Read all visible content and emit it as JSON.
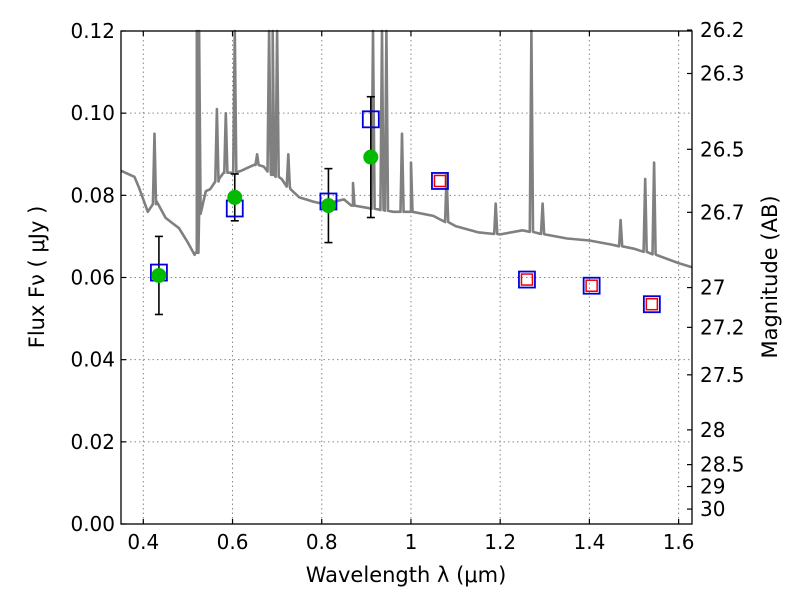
{
  "chart_data": {
    "type": "scatter",
    "xlabel": "Wavelength  λ (μm)",
    "ylabel": "Flux  Fν  ( μJy )",
    "y2label": "Magnitude (AB)",
    "xlim": [
      0.35,
      1.63
    ],
    "ylim": [
      0.0,
      0.12
    ],
    "grid": true,
    "legend": "none",
    "x_ticks": [
      0.4,
      0.6,
      0.8,
      1.0,
      1.2,
      1.4,
      1.6
    ],
    "x_tick_labels": [
      "0.4",
      "0.6",
      "0.8",
      "1",
      "1.2",
      "1.4",
      "1.6"
    ],
    "y_ticks": [
      0.0,
      0.02,
      0.04,
      0.06,
      0.08,
      0.1,
      0.12
    ],
    "y_tick_labels": [
      "0.00",
      "0.02",
      "0.04",
      "0.06",
      "0.08",
      "0.10",
      "0.12"
    ],
    "mag_ticks": [
      26.2,
      26.3,
      26.5,
      26.7,
      27,
      27.2,
      27.5,
      28,
      28.5,
      29,
      30
    ],
    "mag_tick_labels": [
      "26.2",
      "26.3",
      "26.5",
      "26.7",
      "27",
      "27.2",
      "27.5",
      "28",
      "28.5",
      "29",
      "30"
    ],
    "colors": {
      "spectrum": "#808080",
      "observed": "#00bb00",
      "model": "#0000dd",
      "predicted": "#ee0000",
      "errorbar": "#000000",
      "grid": "#888888"
    },
    "series": [
      {
        "type": "line",
        "values": [
          [
            0.35,
            0.086
          ],
          [
            0.37,
            0.085
          ],
          [
            0.38,
            0.0845
          ],
          [
            0.39,
            0.082
          ],
          [
            0.4,
            0.079
          ],
          [
            0.41,
            0.076
          ],
          [
            0.43,
            0.0785
          ],
          [
            0.45,
            0.0745
          ],
          [
            0.48,
            0.072
          ],
          [
            0.5,
            0.0685
          ],
          [
            0.515,
            0.0655
          ],
          [
            0.52,
            0.066
          ],
          [
            0.525,
            0.0755
          ],
          [
            0.54,
            0.081
          ],
          [
            0.55,
            0.0815
          ],
          [
            0.57,
            0.084
          ],
          [
            0.58,
            0.0855
          ],
          [
            0.6,
            0.0855
          ],
          [
            0.62,
            0.086
          ],
          [
            0.63,
            0.0865
          ],
          [
            0.65,
            0.0875
          ],
          [
            0.67,
            0.087
          ],
          [
            0.69,
            0.085
          ],
          [
            0.71,
            0.084
          ],
          [
            0.73,
            0.0815
          ],
          [
            0.75,
            0.0795
          ],
          [
            0.78,
            0.0785
          ],
          [
            0.8,
            0.078
          ],
          [
            0.83,
            0.0785
          ],
          [
            0.85,
            0.079
          ],
          [
            0.87,
            0.0775
          ],
          [
            0.9,
            0.077
          ],
          [
            0.93,
            0.0765
          ],
          [
            0.96,
            0.076
          ],
          [
            1.0,
            0.076
          ],
          [
            1.05,
            0.075
          ],
          [
            1.1,
            0.0725
          ],
          [
            1.15,
            0.071
          ],
          [
            1.2,
            0.0705
          ],
          [
            1.25,
            0.0715
          ],
          [
            1.3,
            0.0705
          ],
          [
            1.35,
            0.0695
          ],
          [
            1.4,
            0.069
          ],
          [
            1.45,
            0.068
          ],
          [
            1.5,
            0.067
          ],
          [
            1.55,
            0.0655
          ],
          [
            1.6,
            0.0635
          ],
          [
            1.63,
            0.0625
          ]
        ],
        "emission_lines": [
          [
            0.425,
            0.095
          ],
          [
            0.52,
            0.12
          ],
          [
            0.525,
            0.12
          ],
          [
            0.565,
            0.101
          ],
          [
            0.585,
            0.1
          ],
          [
            0.605,
            0.12
          ],
          [
            0.655,
            0.09
          ],
          [
            0.682,
            0.12
          ],
          [
            0.69,
            0.12
          ],
          [
            0.7,
            0.12
          ],
          [
            0.725,
            0.09
          ],
          [
            0.87,
            0.083
          ],
          [
            0.915,
            0.12
          ],
          [
            0.935,
            0.12
          ],
          [
            0.945,
            0.12
          ],
          [
            0.98,
            0.095
          ],
          [
            1.0,
            0.088
          ],
          [
            1.08,
            0.085
          ],
          [
            1.19,
            0.078
          ],
          [
            1.27,
            0.12
          ],
          [
            1.295,
            0.078
          ],
          [
            1.47,
            0.074
          ],
          [
            1.525,
            0.084
          ],
          [
            1.545,
            0.088
          ]
        ]
      },
      {
        "type": "errorbar",
        "points": [
          {
            "x": 0.435,
            "y": 0.0605,
            "yerr": 0.0095
          },
          {
            "x": 0.605,
            "y": 0.0795,
            "yerr": 0.0057
          },
          {
            "x": 0.815,
            "y": 0.0775,
            "yerr": 0.009
          },
          {
            "x": 0.91,
            "y": 0.0893,
            "yerr": 0.0147
          }
        ]
      },
      {
        "type": "scatter",
        "marker": "square",
        "points": [
          {
            "x": 0.435,
            "y": 0.0612
          },
          {
            "x": 0.605,
            "y": 0.0768
          },
          {
            "x": 0.815,
            "y": 0.0785
          },
          {
            "x": 0.91,
            "y": 0.0985
          },
          {
            "x": 1.065,
            "y": 0.0835
          },
          {
            "x": 1.26,
            "y": 0.0595
          },
          {
            "x": 1.405,
            "y": 0.058
          },
          {
            "x": 1.54,
            "y": 0.0535
          }
        ]
      },
      {
        "type": "scatter",
        "marker": "square",
        "points": [
          {
            "x": 1.065,
            "y": 0.0835
          },
          {
            "x": 1.26,
            "y": 0.0595
          },
          {
            "x": 1.405,
            "y": 0.058
          },
          {
            "x": 1.54,
            "y": 0.0535
          }
        ]
      }
    ]
  }
}
